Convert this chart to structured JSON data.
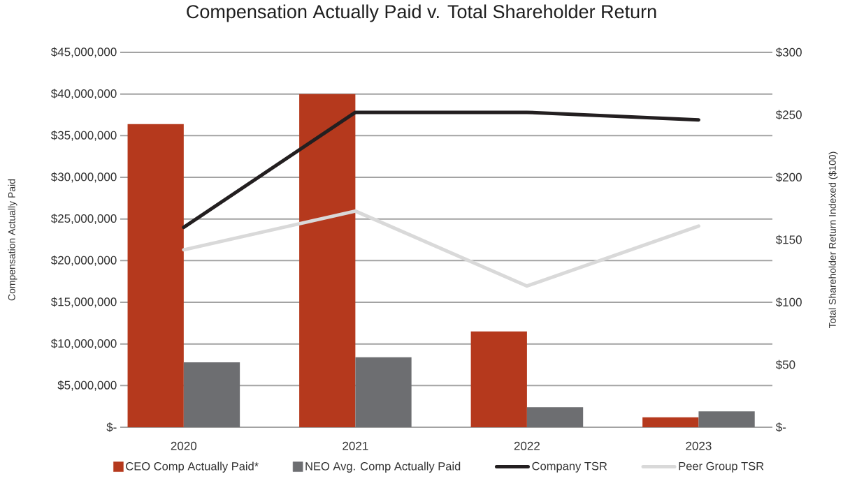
{
  "chart_data": {
    "type": "bar",
    "title": "Compensation Actually Paid v. Total Shareholder Return",
    "ylabel": "Compensation Actually Paid",
    "y2label": "Total Shareholder Return Indexed ($100)",
    "categories": [
      "2020",
      "2021",
      "2022",
      "2023"
    ],
    "series": [
      {
        "name": "CEO Comp Actually Paid*",
        "color": "#b5391d",
        "values": [
          36400000,
          40000000,
          11500000,
          1200000
        ]
      },
      {
        "name": "NEO Avg. Comp Actually Paid",
        "color": "#6d6e71",
        "values": [
          7800000,
          8400000,
          2400000,
          1900000
        ]
      },
      {
        "name": "Company TSR",
        "type": "line",
        "axis": "y2",
        "color": "#231f20",
        "values": [
          160,
          252,
          252,
          246
        ]
      },
      {
        "name": "Peer Group TSR",
        "type": "line",
        "axis": "y2",
        "color": "#d9d9d9",
        "values": [
          142,
          173,
          113,
          161
        ]
      }
    ],
    "ylim": [
      0,
      45000000
    ],
    "yticks": [
      {
        "value": 0,
        "label": "$-"
      },
      {
        "value": 5000000,
        "label": "$5,000,000"
      },
      {
        "value": 10000000,
        "label": "$10,000,000"
      },
      {
        "value": 15000000,
        "label": "$15,000,000"
      },
      {
        "value": 20000000,
        "label": "$20,000,000"
      },
      {
        "value": 25000000,
        "label": "$25,000,000"
      },
      {
        "value": 30000000,
        "label": "$30,000,000"
      },
      {
        "value": 35000000,
        "label": "$35,000,000"
      },
      {
        "value": 40000000,
        "label": "$40,000,000"
      },
      {
        "value": 45000000,
        "label": "$45,000,000"
      }
    ],
    "y2lim": [
      0,
      300
    ],
    "y2ticks": [
      {
        "value": 0,
        "label": "$-"
      },
      {
        "value": 50,
        "label": "$50"
      },
      {
        "value": 100,
        "label": "$100"
      },
      {
        "value": 150,
        "label": "$150"
      },
      {
        "value": 200,
        "label": "$200"
      },
      {
        "value": 250,
        "label": "$250"
      },
      {
        "value": 300,
        "label": "$300"
      }
    ],
    "grid": "y",
    "legend": "bottom"
  }
}
